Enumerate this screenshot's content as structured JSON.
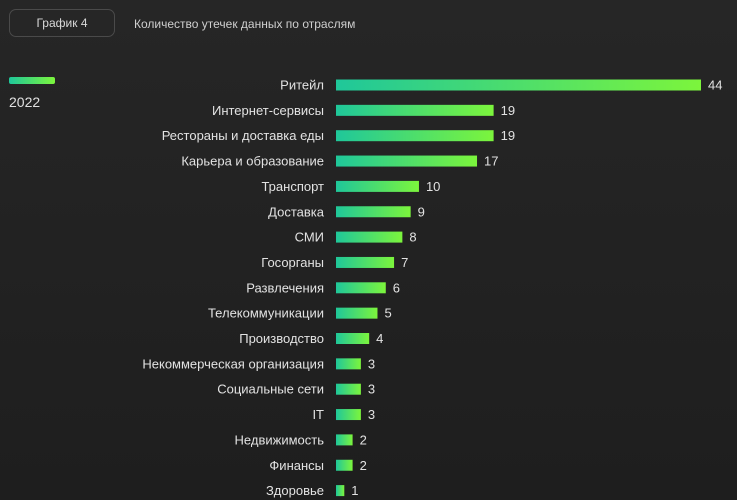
{
  "header": {
    "badge_label": "График 4",
    "title": "Количество утечек данных по отраслям"
  },
  "legend": {
    "label": "2022"
  },
  "colors": {
    "bar_start": "#1fc79a",
    "bar_end": "#7cf53c",
    "background": "#232323"
  },
  "chart_data": {
    "type": "bar",
    "orientation": "horizontal",
    "title": "Количество утечек данных по отраслям",
    "categories": [
      "Ритейл",
      "Интернет-сервисы",
      "Рестораны и доставка еды",
      "Карьера и образование",
      "Транспорт",
      "Доставка",
      "СМИ",
      "Госорганы",
      "Развлечения",
      "Телекоммуникации",
      "Производство",
      "Некоммерческая организация",
      "Социальные сети",
      "IT",
      "Недвижимость",
      "Финансы",
      "Здоровье"
    ],
    "series": [
      {
        "name": "2022",
        "values": [
          44,
          19,
          19,
          17,
          10,
          9,
          8,
          7,
          6,
          5,
          4,
          3,
          3,
          3,
          2,
          2,
          1
        ]
      }
    ],
    "xlim": [
      0,
      44
    ],
    "grid": false,
    "legend_position": "top-left"
  }
}
